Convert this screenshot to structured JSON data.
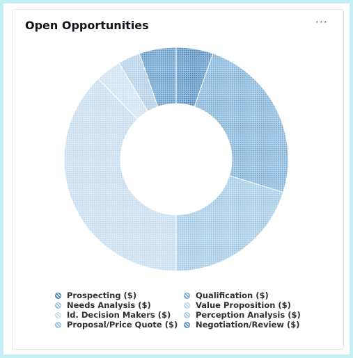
{
  "card": {
    "title": "Open Opportunities",
    "more_label": "···"
  },
  "chart_data": {
    "type": "pie",
    "donut": true,
    "title": "Open Opportunities",
    "legend_position": "bottom",
    "slices": [
      {
        "label": "Prospecting ($)",
        "value": 5.0,
        "color": "#3d80b8"
      },
      {
        "label": "Qualification ($)",
        "value": 23.0,
        "color": "#6ea8d2"
      },
      {
        "label": "Needs Analysis ($)",
        "value": 19.0,
        "color": "#93c1e0"
      },
      {
        "label": "Value Proposition ($)",
        "value": 35.5,
        "color": "#bcd7ec"
      },
      {
        "label": "Id. Decision Makers ($)",
        "value": 3.5,
        "color": "#c6dcef"
      },
      {
        "label": "Perception Analysis ($)",
        "value": 3.0,
        "color": "#a3c7e4"
      },
      {
        "label": "Proposal/Price Quote ($)",
        "value": 0,
        "color": "#8cbbde"
      },
      {
        "label": "Negotiation/Review ($)",
        "value": 5.0,
        "color": "#4f8fc2"
      }
    ],
    "draw_order": [
      0,
      1,
      2,
      3,
      4,
      5,
      7
    ]
  }
}
